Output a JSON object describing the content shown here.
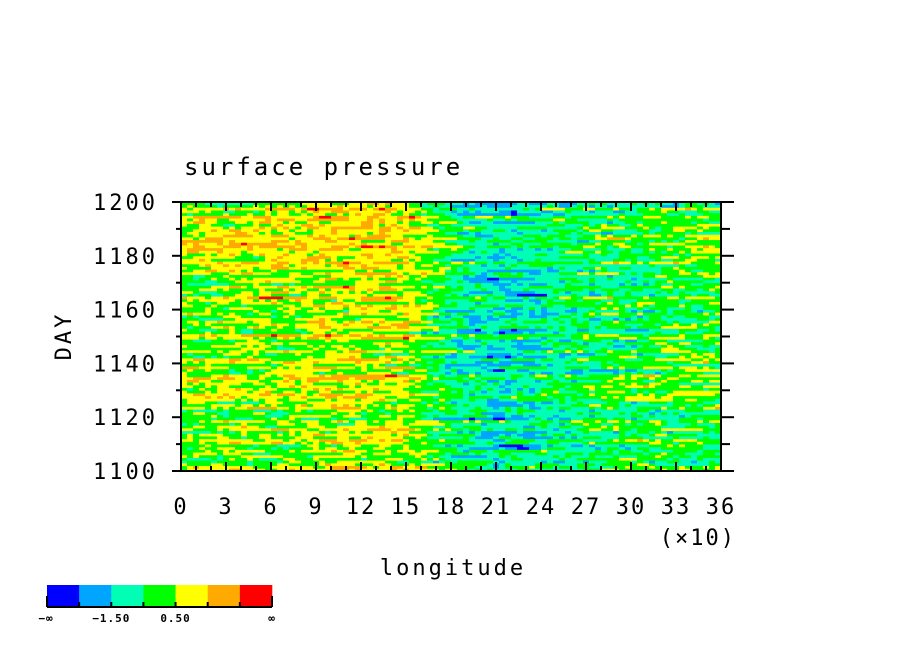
{
  "chart_data": {
    "type": "heatmap",
    "title": "surface pressure",
    "xlabel": "longitude",
    "ylabel": "DAY",
    "x_multiplier_label": "(×10)",
    "xlim": [
      0,
      360
    ],
    "ylim": [
      1100,
      1200
    ],
    "x_ticks": [
      0,
      30,
      60,
      90,
      120,
      150,
      180,
      210,
      240,
      270,
      300,
      330,
      360
    ],
    "x_tick_labels": [
      "0",
      "3",
      "6",
      "9",
      "12",
      "15",
      "18",
      "21",
      "24",
      "27",
      "30",
      "33",
      "36"
    ],
    "y_ticks": [
      1100,
      1120,
      1140,
      1160,
      1180,
      1200
    ],
    "y_tick_labels": [
      "1100",
      "1120",
      "1140",
      "1160",
      "1180",
      "1200"
    ],
    "coarse_grid": {
      "lon": [
        0,
        30,
        60,
        90,
        120,
        150,
        180,
        210,
        240,
        270,
        300,
        330,
        360
      ],
      "day": [
        1100,
        1120,
        1140,
        1160,
        1180,
        1200
      ],
      "values": [
        [
          0.3,
          0.5,
          0.6,
          0.8,
          1.0,
          1.0,
          -0.3,
          -0.8,
          -0.6,
          -0.2,
          0.0,
          0.0,
          0.0
        ],
        [
          0.0,
          0.3,
          0.4,
          0.6,
          0.6,
          0.7,
          -0.5,
          -1.2,
          -0.8,
          -0.4,
          -0.2,
          -0.2,
          0.0
        ],
        [
          0.6,
          0.8,
          0.6,
          0.8,
          0.9,
          0.8,
          -0.8,
          -1.4,
          -1.0,
          -0.5,
          -0.2,
          0.2,
          0.3
        ],
        [
          0.2,
          0.4,
          0.5,
          0.9,
          1.2,
          1.1,
          -0.6,
          -1.2,
          -0.9,
          -0.5,
          -0.4,
          -0.3,
          -0.2
        ],
        [
          0.8,
          1.0,
          1.0,
          0.9,
          1.0,
          1.0,
          -0.3,
          -1.3,
          -1.2,
          -0.6,
          -0.3,
          0.0,
          0.4
        ],
        [
          0.3,
          0.5,
          0.6,
          1.2,
          1.5,
          1.3,
          -0.9,
          -1.0,
          -0.8,
          -0.6,
          -0.4,
          -0.3,
          -0.2
        ]
      ]
    },
    "levels": [
      -2.5,
      -1.5,
      -0.5,
      0.5,
      1.5,
      2.5
    ],
    "colors": [
      "#0000ff",
      "#00a5ff",
      "#00ffb4",
      "#00ff00",
      "#ffff00",
      "#ffaa00",
      "#ff0000"
    ],
    "colorbar": {
      "labels": [
        "−∞",
        "−1.50",
        "0.50",
        "∞"
      ],
      "label_levels": [
        "-inf",
        -1.5,
        0.5,
        "inf"
      ]
    }
  }
}
